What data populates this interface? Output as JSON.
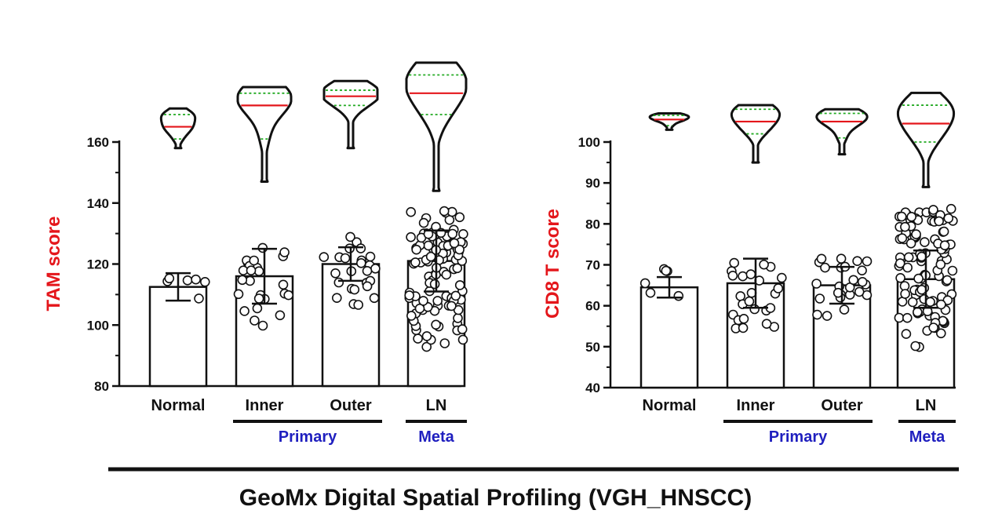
{
  "figure_title": "GeoMx Digital Spatial Profiling (VGH_HNSCC)",
  "colors": {
    "axis": "#111111",
    "ylabel": "#e4161b",
    "group_label": "#1f1fbf",
    "violin_median": "#e4161b",
    "violin_quartile": "#22aa22",
    "point_fill": "#ffffff"
  },
  "chart_data": [
    {
      "type": "bar",
      "ylabel": "TAM score",
      "ylim": [
        80,
        175
      ],
      "yticks": [
        80,
        100,
        120,
        140,
        160
      ],
      "categories": [
        "Normal",
        "Inner",
        "Outer",
        "LN"
      ],
      "groups": [
        {
          "label": "Primary",
          "categories": [
            "Inner",
            "Outer"
          ]
        },
        {
          "label": "Meta",
          "categories": [
            "LN"
          ]
        }
      ],
      "bar_values": [
        112.5,
        116,
        120,
        121
      ],
      "error_sd": [
        4.5,
        9,
        5.5,
        10
      ],
      "n_points": [
        6,
        25,
        25,
        110
      ],
      "point_ranges": [
        [
          106,
          118
        ],
        [
          95,
          126
        ],
        [
          106,
          129
        ],
        [
          92,
          138
        ]
      ],
      "violins": [
        {
          "min": 158,
          "max": 171,
          "q1": 161,
          "median": 165,
          "q3": 169
        },
        {
          "min": 147,
          "max": 178,
          "q1": 161,
          "median": 172,
          "q3": 176
        },
        {
          "min": 158,
          "max": 180,
          "q1": 172,
          "median": 175,
          "q3": 177
        },
        {
          "min": 144,
          "max": 186,
          "q1": 169,
          "median": 176,
          "q3": 182
        }
      ]
    },
    {
      "type": "bar",
      "ylabel": "CD8 T score",
      "ylim": [
        40,
        103
      ],
      "yticks": [
        40,
        50,
        60,
        70,
        80,
        90,
        100
      ],
      "categories": [
        "Normal",
        "Inner",
        "Outer",
        "LN"
      ],
      "groups": [
        {
          "label": "Primary",
          "categories": [
            "Inner",
            "Outer"
          ]
        },
        {
          "label": "Meta",
          "categories": [
            "LN"
          ]
        }
      ],
      "bar_values": [
        64.5,
        65.5,
        65,
        66.5
      ],
      "error_sd": [
        2.5,
        6,
        4.5,
        7
      ],
      "n_points": [
        6,
        25,
        25,
        110
      ],
      "point_ranges": [
        [
          62,
          69
        ],
        [
          54,
          73
        ],
        [
          56,
          72
        ],
        [
          49.5,
          84
        ]
      ],
      "violins": [
        {
          "min": 103,
          "max": 107,
          "q1": 104,
          "median": 105.5,
          "q3": 106.5
        },
        {
          "min": 95,
          "max": 109,
          "q1": 102,
          "median": 105,
          "q3": 108
        },
        {
          "min": 97,
          "max": 108,
          "q1": 101,
          "median": 105,
          "q3": 107
        },
        {
          "min": 89,
          "max": 112,
          "q1": 100,
          "median": 104.5,
          "q3": 109
        }
      ]
    }
  ]
}
